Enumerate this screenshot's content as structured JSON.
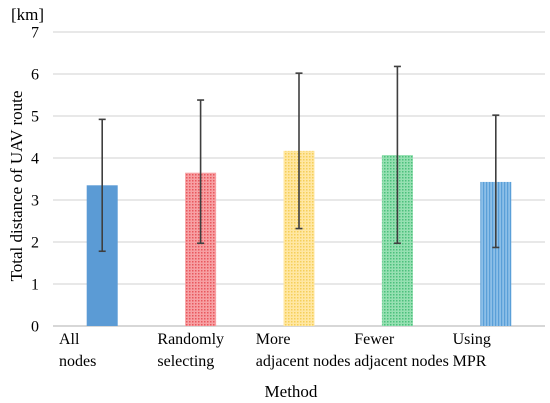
{
  "chart_data": {
    "type": "bar",
    "title": "",
    "unit_label": "[km]",
    "xlabel": "Method",
    "ylabel": "Total distance of UAV route",
    "ylim": [
      0,
      7
    ],
    "yticks": [
      0,
      1,
      2,
      3,
      4,
      5,
      6,
      7
    ],
    "grid": true,
    "categories": [
      [
        "All",
        "nodes"
      ],
      [
        "Randomly",
        "selecting"
      ],
      [
        "More",
        "adjacent nodes"
      ],
      [
        "Fewer",
        "adjacent nodes"
      ],
      [
        "Using",
        "MPR"
      ]
    ],
    "values": [
      3.35,
      3.65,
      4.17,
      4.07,
      3.43
    ],
    "error_low": [
      1.78,
      1.97,
      2.32,
      1.97,
      1.87
    ],
    "error_high": [
      4.92,
      5.38,
      6.02,
      6.18,
      5.02
    ],
    "colors": [
      "#5b9bd5",
      "#f4878b",
      "#ffe08a",
      "#7fd6a0",
      "#7fb6e4"
    ]
  }
}
